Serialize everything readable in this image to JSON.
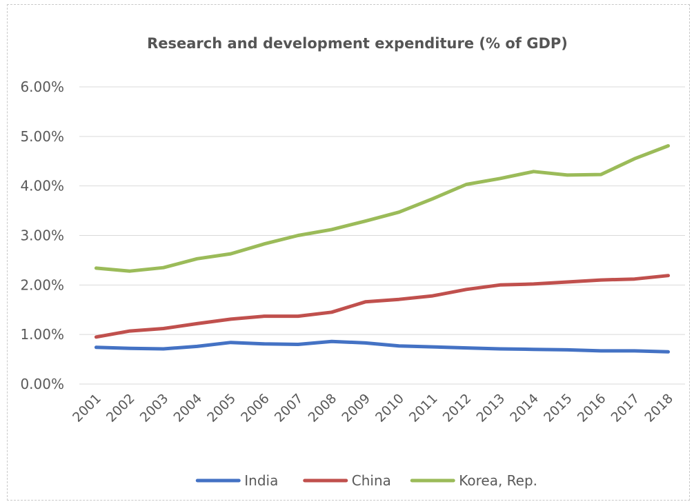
{
  "chart_data": {
    "type": "line",
    "title": "Research and development expenditure (% of GDP)",
    "xlabel": "",
    "ylabel": "",
    "ylim": [
      0,
      6
    ],
    "yticks": [
      0,
      1,
      2,
      3,
      4,
      5,
      6
    ],
    "ytick_labels": [
      "0.00%",
      "1.00%",
      "2.00%",
      "3.00%",
      "4.00%",
      "5.00%",
      "6.00%"
    ],
    "categories": [
      "2001",
      "2002",
      "2003",
      "2004",
      "2005",
      "2006",
      "2007",
      "2008",
      "2009",
      "2010",
      "2011",
      "2012",
      "2013",
      "2014",
      "2015",
      "2016",
      "2017",
      "2018"
    ],
    "grid": true,
    "legend_position": "bottom",
    "series": [
      {
        "name": "India",
        "color": "#4472C4",
        "values": [
          0.74,
          0.72,
          0.71,
          0.76,
          0.84,
          0.81,
          0.8,
          0.86,
          0.83,
          0.77,
          0.75,
          0.73,
          0.71,
          0.7,
          0.69,
          0.67,
          0.67,
          0.65
        ]
      },
      {
        "name": "China",
        "color": "#C0504D",
        "values": [
          0.95,
          1.07,
          1.12,
          1.22,
          1.31,
          1.37,
          1.37,
          1.45,
          1.66,
          1.71,
          1.78,
          1.91,
          2.0,
          2.02,
          2.06,
          2.1,
          2.12,
          2.19
        ]
      },
      {
        "name": "Korea, Rep.",
        "color": "#9BBB59",
        "values": [
          2.34,
          2.28,
          2.35,
          2.53,
          2.63,
          2.83,
          3.0,
          3.12,
          3.29,
          3.47,
          3.74,
          4.03,
          4.15,
          4.29,
          4.22,
          4.23,
          4.55,
          4.81
        ]
      }
    ]
  }
}
